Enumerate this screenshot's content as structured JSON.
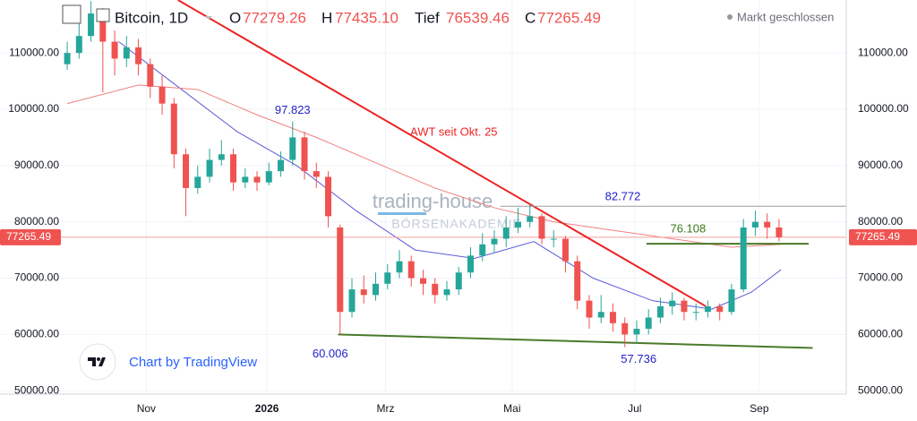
{
  "chart_data": {
    "type": "candlestick",
    "header": {
      "title": "Bitcoin, 1D",
      "open_label": "O",
      "open": "77279.26",
      "high_label": "H",
      "high": "77435.10",
      "low_label": "Tief",
      "low": "76539.46",
      "close_label": "C",
      "close": "77265.49",
      "status": "Markt geschlossen"
    },
    "watermark": [
      "trading-house",
      "BÖRSENAKADEMIE"
    ],
    "credit": "Chart by TradingView",
    "up_color": "#26a69a",
    "down_color": "#ef5350",
    "xlim": [
      0,
      428
    ],
    "ylim": [
      49400,
      119400
    ],
    "xticks": [
      {
        "value": 74,
        "label": "Nov"
      },
      {
        "value": 135,
        "label": "2026"
      },
      {
        "value": 195,
        "label": "Mrz"
      },
      {
        "value": 259,
        "label": "Mai"
      },
      {
        "value": 321,
        "label": "Jul"
      },
      {
        "value": 384,
        "label": "Sep"
      }
    ],
    "yticks": [
      {
        "value": 50000,
        "label": "50000.00"
      },
      {
        "value": 60000,
        "label": "60000.00"
      },
      {
        "value": 70000,
        "label": "70000.00"
      },
      {
        "value": 80000,
        "label": "80000.00"
      },
      {
        "value": 90000,
        "label": "90000.00"
      },
      {
        "value": 100000,
        "label": "100000.00"
      },
      {
        "value": 110000,
        "label": "110000.00"
      }
    ],
    "grid": true,
    "last_price": {
      "value": 77265.49,
      "label": "77265.49"
    },
    "candles": {
      "x": [
        34,
        40,
        46,
        52,
        58,
        64,
        70,
        76,
        82,
        88,
        94,
        100,
        106,
        112,
        118,
        124,
        130,
        136,
        142,
        148,
        154,
        160,
        166,
        172,
        178,
        184,
        190,
        196,
        202,
        208,
        214,
        220,
        226,
        232,
        238,
        244,
        250,
        256,
        262,
        268,
        274,
        280,
        286,
        292,
        298,
        304,
        310,
        316,
        322,
        328,
        334,
        340,
        346,
        352,
        358,
        364,
        370,
        376,
        382,
        388,
        394
      ],
      "open": [
        108000,
        110000,
        113000,
        117000,
        112000,
        109000,
        111000,
        108000,
        104000,
        101000,
        92000,
        86000,
        88000,
        91000,
        92000,
        87000,
        88000,
        87000,
        89000,
        91000,
        95000,
        89000,
        88000,
        79000,
        64000,
        68000,
        67000,
        69000,
        71000,
        73000,
        70000,
        69000,
        67000,
        68000,
        71000,
        74000,
        76000,
        77000,
        79000,
        80000,
        81000,
        77000,
        77000,
        73000,
        66000,
        63000,
        64000,
        62000,
        60000,
        61000,
        63000,
        65000,
        66000,
        64000,
        64000,
        65000,
        64000,
        68000,
        79000,
        80000,
        79000
      ],
      "high": [
        112000,
        116000,
        119200,
        118000,
        114000,
        113000,
        112500,
        109000,
        106000,
        102000,
        93000,
        90000,
        93000,
        94500,
        93000,
        89500,
        89000,
        90500,
        92500,
        97823,
        96000,
        90500,
        89000,
        79500,
        70000,
        70500,
        71000,
        72500,
        75000,
        74000,
        71500,
        70000,
        69500,
        72000,
        75500,
        78000,
        78500,
        81000,
        82500,
        83000,
        81500,
        78500,
        77500,
        74000,
        67000,
        67000,
        65500,
        63000,
        62500,
        64500,
        66500,
        67500,
        66500,
        65500,
        66000,
        65500,
        69000,
        80500,
        82000,
        81500,
        80500
      ],
      "low": [
        107000,
        109000,
        112000,
        103000,
        106000,
        107500,
        106000,
        102000,
        99000,
        89500,
        81000,
        85000,
        87000,
        90000,
        85500,
        86000,
        85500,
        86500,
        88000,
        90000,
        87500,
        86000,
        79000,
        60006,
        63000,
        65500,
        66000,
        68000,
        70000,
        68500,
        67000,
        65500,
        66000,
        67000,
        70000,
        73000,
        74500,
        75500,
        78000,
        79000,
        76000,
        75500,
        71000,
        64500,
        61000,
        62000,
        60500,
        57736,
        58500,
        60000,
        62000,
        63500,
        62500,
        62500,
        63000,
        62500,
        63500,
        67500,
        77500,
        77000,
        76539.46
      ],
      "close": [
        110000,
        113000,
        117000,
        112000,
        109000,
        111000,
        108000,
        104000,
        101000,
        92000,
        86000,
        88000,
        91000,
        92000,
        87000,
        88000,
        87000,
        89000,
        91000,
        95000,
        89000,
        88000,
        81000,
        64000,
        68000,
        67000,
        69000,
        71000,
        73000,
        70000,
        69000,
        67000,
        68000,
        71000,
        74000,
        76000,
        77000,
        79000,
        80000,
        81000,
        77000,
        77000,
        73000,
        66000,
        63000,
        64000,
        62000,
        60000,
        61000,
        63000,
        65000,
        66000,
        64000,
        64000,
        65000,
        64000,
        68000,
        79000,
        80000,
        79000,
        77265.49
      ]
    },
    "series": [
      {
        "color": "#5b5bd6",
        "x": [
          60,
          90,
          120,
          150,
          180,
          210,
          240,
          270,
          300,
          330,
          360,
          380,
          395
        ],
        "values": [
          112000,
          104000,
          96000,
          90000,
          82000,
          75000,
          73500,
          76500,
          70000,
          66000,
          64500,
          67500,
          71500
        ]
      },
      {
        "color": "#f08080",
        "x": [
          34,
          70,
          100,
          130,
          160,
          190,
          220,
          250,
          280,
          310,
          340,
          370,
          395
        ],
        "values": [
          101000,
          104300,
          103500,
          99000,
          95000,
          90500,
          86000,
          82500,
          80000,
          78500,
          77000,
          75500,
          76000
        ]
      }
    ],
    "trendlines": [
      {
        "color": "#ee2222",
        "x": [
          90,
          357
        ],
        "y": [
          119400,
          65000
        ]
      },
      {
        "color": "#4a7a2a",
        "x": [
          171,
          411
        ],
        "y": [
          60000,
          57600
        ]
      },
      {
        "color": "#4a7a2a",
        "x": [
          327,
          409
        ],
        "y": [
          76108,
          76108
        ]
      },
      {
        "color": "#9e9e9e",
        "x": [
          253,
          428
        ],
        "y": [
          82772,
          82772
        ]
      }
    ],
    "annotations": [
      {
        "label": "97.823",
        "value": 97823,
        "color": "#2323c8"
      },
      {
        "label": "82.772",
        "value": 82772,
        "color": "#2323c8"
      },
      {
        "label": "76.108",
        "value": 76108,
        "color": "#3a7a1a"
      },
      {
        "label": "60.006",
        "value": 60006,
        "color": "#2323c8"
      },
      {
        "label": "57.736",
        "value": 57736,
        "color": "#2323c8"
      }
    ],
    "awt_label": "AWT seit Okt. 25"
  }
}
